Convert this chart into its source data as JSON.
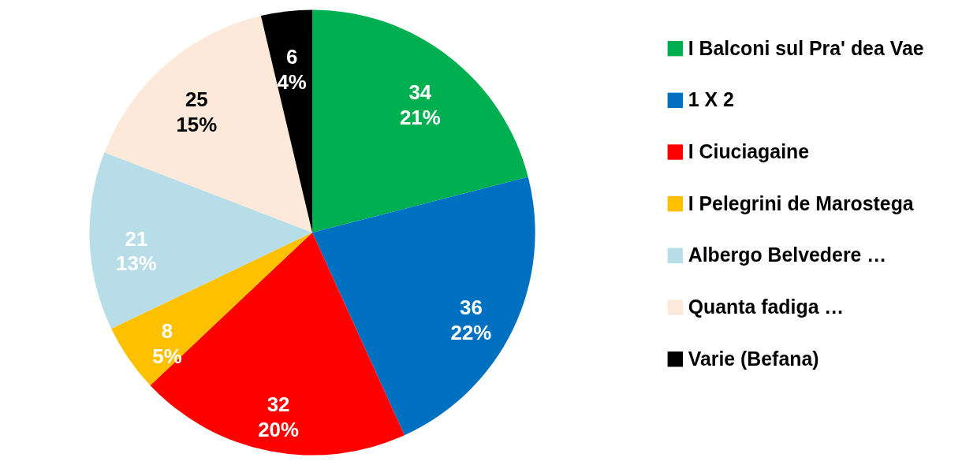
{
  "chart_data": {
    "type": "pie",
    "categories": [
      "I Balconi sul Pra' dea Vae",
      "1 X 2",
      "I Ciuciagaine",
      "I Pelegrini de Marostega",
      "Albergo Belvedere …",
      "Quanta fadiga …",
      "Varie (Befana)"
    ],
    "values": [
      34,
      36,
      32,
      8,
      21,
      25,
      6
    ],
    "colors": [
      "#00b050",
      "#0070c0",
      "#ff0000",
      "#ffc000",
      "#b7dee8",
      "#fde9d9",
      "#000000"
    ],
    "value_labels": [
      "34\n21%",
      "36\n22%",
      "32\n20%",
      "8\n5%",
      "21\n13%",
      "25\n15%",
      "6\n4%"
    ],
    "legend": "right"
  }
}
